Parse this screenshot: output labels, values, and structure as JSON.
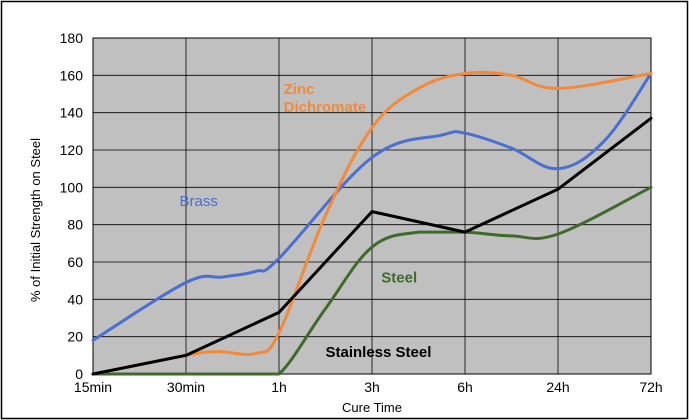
{
  "chart_data": {
    "type": "line",
    "xlabel": "Cure Time",
    "ylabel": "% of Initial Strength on Steel",
    "categories": [
      "15min",
      "30min",
      "1h",
      "3h",
      "6h",
      "24h",
      "72h"
    ],
    "ylim": [
      0,
      180
    ],
    "yticks": [
      0,
      20,
      40,
      60,
      80,
      100,
      120,
      140,
      160,
      180
    ],
    "grid": true,
    "plot_background": "#c0c0c0",
    "series": [
      {
        "name": "Brass",
        "color": "#4a6fd0",
        "x": [
          0,
          1,
          1.4,
          1.75,
          2,
          3,
          3.75,
          4,
          4.5,
          5,
          5.5,
          6
        ],
        "y": [
          18,
          49,
          52,
          55,
          62,
          116,
          128,
          129,
          121,
          110,
          125,
          161
        ],
        "label_pos": {
          "x": 0.93,
          "y": 90
        }
      },
      {
        "name": "Zinc\nDichromate",
        "color": "#f28a3a",
        "x": [
          0,
          1,
          1.35,
          1.75,
          2,
          2.5,
          3,
          3.5,
          4,
          4.5,
          5,
          6
        ],
        "y": [
          0,
          10,
          12,
          11,
          22,
          85,
          132,
          153,
          161,
          160,
          153,
          161
        ],
        "label_pos": {
          "x": 2.05,
          "y": 150
        }
      },
      {
        "name": "Steel",
        "color": "#3e6b2a",
        "x": [
          0,
          1,
          1.7,
          2,
          2.5,
          3,
          3.5,
          4,
          4.5,
          5,
          6
        ],
        "y": [
          0,
          0,
          0,
          0,
          35,
          68,
          76,
          76,
          74,
          75,
          100
        ],
        "label_pos": {
          "x": 3.1,
          "y": 49
        }
      },
      {
        "name": "Stainless Steel",
        "color": "#000000",
        "x": [
          0,
          1,
          2,
          3,
          4,
          5,
          6
        ],
        "y": [
          0,
          10,
          33,
          87,
          76,
          99,
          137
        ],
        "label_pos": {
          "x": 2.5,
          "y": 9
        }
      }
    ]
  }
}
